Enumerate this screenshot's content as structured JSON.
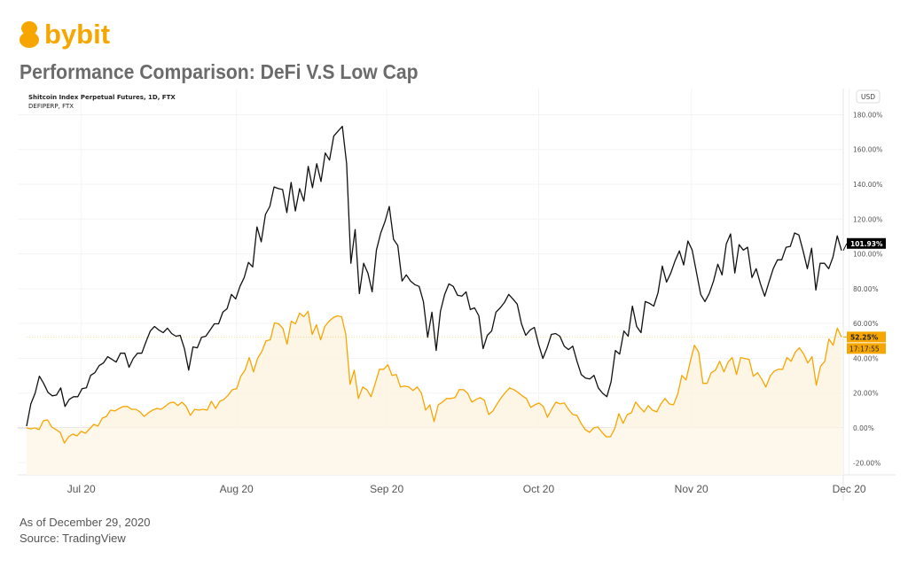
{
  "brand": {
    "name": "bybit",
    "color": "#F7A600"
  },
  "title": "Performance Comparison: DeFi V.S Low Cap",
  "footer": {
    "as_of": "As of December 29, 2020",
    "source": "Source: TradingView"
  },
  "chart_data": {
    "type": "line",
    "legend": [
      "Shitcoin Index Perpetual Futures, 1D, FTX",
      "DEFIPERP, FTX"
    ],
    "legend_placement": "top-left",
    "currency_button": "USD",
    "x_ticks": [
      {
        "label": "Jul 20",
        "pos": 0.067
      },
      {
        "label": "Aug 20",
        "pos": 0.257
      },
      {
        "label": "Sep 20",
        "pos": 0.441
      },
      {
        "label": "Oct 20",
        "pos": 0.627
      },
      {
        "label": "Nov 20",
        "pos": 0.814
      },
      {
        "label": "Dec 20",
        "pos": 1.005
      }
    ],
    "y_ticks": [
      -20,
      0,
      20,
      40,
      60,
      80,
      100,
      120,
      140,
      160,
      180
    ],
    "y_tick_labels": [
      "-20.00%",
      "0.00%",
      "20.00%",
      "40.00%",
      "60.00%",
      "80.00%",
      "100.00%",
      "120.00%",
      "140.00%",
      "160.00%",
      "180.00%"
    ],
    "ylim": [
      -27,
      195
    ],
    "grid": true,
    "series": [
      {
        "name": "Shitcoin Index Perpetual Futures",
        "color": "#111111",
        "last_label": "101.93%",
        "fill": false,
        "values": [
          1.0,
          13.8,
          19.9,
          29.7,
          25.6,
          20.4,
          18.4,
          18.9,
          23.0,
          12.3,
          16.4,
          17.9,
          17.9,
          22.5,
          23.0,
          30.2,
          31.7,
          35.8,
          37.3,
          40.9,
          39.4,
          37.8,
          42.9,
          42.9,
          34.8,
          39.9,
          42.9,
          42.9,
          49.6,
          55.7,
          58.3,
          56.2,
          54.7,
          57.3,
          54.2,
          52.7,
          53.2,
          45.5,
          33.2,
          46.5,
          46.0,
          52.1,
          52.7,
          56.2,
          59.8,
          59.8,
          66.5,
          68.5,
          76.7,
          74.1,
          81.3,
          86.4,
          95.1,
          92.5,
          115.5,
          106.9,
          122.7,
          127.3,
          138.5,
          137.5,
          137.0,
          123.7,
          141.1,
          124.7,
          137.5,
          130.4,
          150.3,
          138.0,
          151.8,
          141.6,
          158.0,
          153.9,
          167.7,
          170.5,
          173.3,
          151.8,
          94.6,
          114.0,
          77.2,
          94.6,
          89.0,
          78.2,
          102.2,
          112.0,
          118.6,
          127.3,
          108.4,
          104.8,
          84.4,
          87.9,
          84.4,
          82.3,
          81.3,
          72.6,
          52.1,
          66.5,
          44.5,
          67.0,
          76.7,
          82.8,
          81.3,
          76.2,
          75.7,
          78.2,
          68.0,
          69.0,
          64.4,
          45.5,
          53.2,
          55.7,
          66.5,
          69.0,
          72.1,
          76.7,
          74.0,
          71.1,
          59.8,
          53.2,
          56.2,
          57.8,
          48.0,
          39.9,
          46.0,
          53.7,
          54.2,
          52.7,
          47.0,
          45.0,
          47.0,
          38.3,
          30.7,
          28.6,
          28.1,
          30.2,
          23.0,
          19.9,
          17.9,
          26.6,
          44.5,
          42.4,
          55.7,
          52.7,
          70.0,
          58.3,
          54.7,
          72.6,
          71.6,
          70.0,
          77.7,
          93.0,
          83.8,
          89.0,
          96.1,
          101.7,
          93.6,
          107.4,
          102.2,
          89.5,
          76.7,
          72.6,
          77.2,
          84.4,
          94.1,
          87.9,
          105.8,
          111.5,
          89.0,
          105.3,
          102.2,
          103.8,
          86.4,
          91.5,
          82.8,
          75.7,
          83.8,
          91.5,
          96.6,
          96.6,
          103.8,
          104.3,
          112.0,
          110.9,
          101.7,
          91.5,
          103.3,
          79.2,
          94.6,
          94.6,
          91.5,
          98.2,
          110.4,
          101.93
        ]
      },
      {
        "name": "DEFIPERP",
        "color": "#F7A600",
        "last_label": "52.25%",
        "countdown": "17:17:55",
        "fill": true,
        "values": [
          0,
          -0.5,
          0,
          -1.0,
          4.1,
          4.6,
          0.5,
          -1.0,
          -2.6,
          -8.7,
          -5.1,
          -3.6,
          -4.6,
          -2.0,
          -3.1,
          -0.5,
          2.0,
          1.0,
          5.6,
          6.6,
          10.2,
          9.7,
          11.2,
          12.3,
          12.3,
          10.7,
          10.7,
          9.2,
          6.6,
          8.7,
          10.2,
          11.2,
          10.7,
          12.3,
          14.3,
          14.8,
          12.8,
          14.8,
          12.3,
          7.2,
          10.7,
          10.2,
          10.7,
          10.2,
          15.3,
          11.2,
          15.3,
          16.4,
          18.9,
          22.0,
          22.5,
          29.7,
          33.2,
          40.4,
          32.2,
          39.9,
          44.0,
          50.1,
          50.6,
          60.3,
          59.8,
          57.3,
          48.1,
          61.3,
          59.8,
          66.0,
          63.9,
          67.0,
          53.7,
          59.3,
          50.6,
          58.3,
          61.3,
          63.4,
          64.4,
          63.9,
          53.7,
          25.1,
          33.2,
          16.9,
          23.5,
          22.0,
          17.9,
          25.6,
          33.7,
          33.7,
          36.3,
          30.2,
          30.7,
          23.5,
          24.0,
          23.5,
          21.5,
          23.5,
          19.9,
          10.2,
          13.3,
          3.6,
          13.3,
          14.8,
          16.9,
          16.9,
          17.4,
          22.0,
          22.0,
          19.9,
          14.8,
          16.4,
          17.4,
          15.8,
          7.7,
          9.7,
          13.8,
          17.4,
          20.4,
          23.0,
          22.0,
          20.4,
          18.4,
          16.9,
          11.8,
          13.3,
          14.3,
          12.3,
          6.1,
          10.7,
          14.8,
          13.8,
          14.3,
          10.7,
          7.7,
          7.2,
          2.6,
          -1.0,
          -2.6,
          0,
          0.5,
          -2.6,
          -5.1,
          -5.1,
          -0.5,
          8.2,
          2.6,
          7.7,
          8.7,
          14.8,
          11.8,
          9.2,
          12.8,
          10.2,
          9.2,
          13.8,
          16.9,
          13.8,
          13.3,
          19.4,
          30.2,
          27.6,
          38.3,
          47.5,
          43.5,
          25.6,
          25.6,
          31.7,
          33.2,
          38.3,
          32.2,
          37.8,
          40.4,
          30.7,
          40.4,
          39.9,
          39.4,
          29.7,
          31.7,
          28.1,
          23.5,
          29.7,
          32.7,
          33.7,
          33.7,
          40.4,
          38.3,
          43.5,
          46.0,
          42.4,
          37.3,
          40.9,
          24.5,
          35.3,
          38.3,
          51.1,
          47.5,
          57.3,
          52.25
        ]
      }
    ]
  }
}
